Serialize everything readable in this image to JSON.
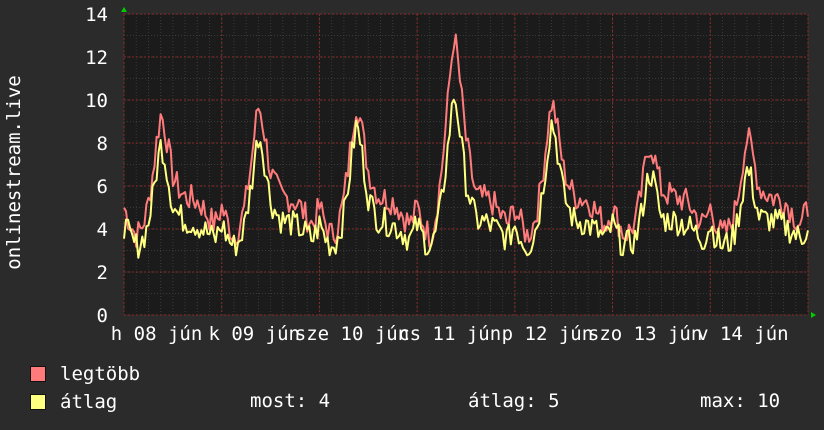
{
  "chart_data": {
    "type": "line",
    "ylabel": "onlinestream.live",
    "ylim": [
      0,
      14
    ],
    "yticks": [
      0,
      2,
      4,
      6,
      8,
      10,
      12,
      14
    ],
    "xlim": [
      0,
      7
    ],
    "x_tick_labels": [
      {
        "x": 0.333,
        "label": "h 08 jún"
      },
      {
        "x": 1.333,
        "label": "k 09 jún"
      },
      {
        "x": 2.333,
        "label": "sze 10 jún"
      },
      {
        "x": 3.333,
        "label": "cs 11 jún"
      },
      {
        "x": 4.333,
        "label": "p 12 jún"
      },
      {
        "x": 5.333,
        "label": "szo 13 jún"
      },
      {
        "x": 6.333,
        "label": "v 14 jún"
      }
    ],
    "grid": true,
    "legend_position": "bottom",
    "series": [
      {
        "name": "legtöbb",
        "color": "#ff7b7b",
        "daily_profile": [
          [
            0.0,
            5.0
          ],
          [
            0.06,
            4.3
          ],
          [
            0.12,
            3.7
          ],
          [
            0.18,
            4.0
          ],
          [
            0.24,
            4.8
          ],
          [
            0.3,
            6.5
          ],
          [
            0.34,
            8.0
          ],
          [
            0.38,
            9.0
          ],
          [
            0.42,
            8.3
          ],
          [
            0.46,
            7.3
          ],
          [
            0.5,
            6.3
          ],
          [
            0.56,
            5.8
          ],
          [
            0.62,
            5.5
          ],
          [
            0.7,
            5.4
          ],
          [
            0.78,
            5.2
          ],
          [
            0.86,
            4.6
          ],
          [
            0.93,
            4.2
          ],
          [
            1.0,
            5.0
          ]
        ],
        "day_peaks": [
          9.4,
          9.8,
          9.9,
          13.1,
          10.0,
          8.0,
          8.3
        ]
      },
      {
        "name": "átlag",
        "color": "#ffff80",
        "daily_profile": [
          [
            0.0,
            4.2
          ],
          [
            0.06,
            3.6
          ],
          [
            0.12,
            3.2
          ],
          [
            0.18,
            3.4
          ],
          [
            0.24,
            4.0
          ],
          [
            0.3,
            5.5
          ],
          [
            0.34,
            6.8
          ],
          [
            0.38,
            7.8
          ],
          [
            0.42,
            7.1
          ],
          [
            0.46,
            6.0
          ],
          [
            0.5,
            5.0
          ],
          [
            0.56,
            4.6
          ],
          [
            0.62,
            4.4
          ],
          [
            0.7,
            4.3
          ],
          [
            0.78,
            4.1
          ],
          [
            0.86,
            3.8
          ],
          [
            0.93,
            3.5
          ],
          [
            1.0,
            4.2
          ]
        ],
        "day_peaks": [
          8.0,
          8.5,
          8.9,
          10.4,
          9.1,
          6.7,
          6.8
        ]
      }
    ]
  },
  "legend": [
    {
      "label": "legtöbb",
      "color": "#ff7b7b"
    },
    {
      "label": "átlag",
      "color": "#ffff80"
    }
  ],
  "stats": {
    "now": "most: 4",
    "avg": "átlag: 5",
    "max": "max: 10"
  },
  "colors": {
    "background": "#2b2b2b",
    "plot_background": "#1b1b1b",
    "grid_minor": "#3a3a3a",
    "grid_major": "#8a2a2a",
    "axis_arrow": "#00cc00"
  }
}
